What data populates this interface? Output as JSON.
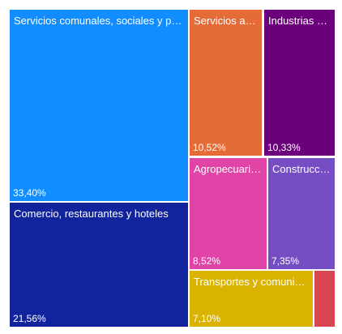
{
  "chart_data": {
    "type": "treemap",
    "items": [
      {
        "label": "Servicios comunales, sociales y pe…",
        "value_label": "33,40%",
        "value": 33.4,
        "color": "#118DFF"
      },
      {
        "label": "Comercio, restaurantes y hoteles",
        "value_label": "21,56%",
        "value": 21.56,
        "color": "#12239E"
      },
      {
        "label": "Servicios a …",
        "value_label": "10,52%",
        "value": 10.52,
        "color": "#E66C37"
      },
      {
        "label": "Industrias …",
        "value_label": "10,33%",
        "value": 10.33,
        "color": "#6B007B"
      },
      {
        "label": "Agropecuari…",
        "value_label": "8,52%",
        "value": 8.52,
        "color": "#E044A7"
      },
      {
        "label": "Construcci…",
        "value_label": "7,35%",
        "value": 7.35,
        "color": "#744EC2"
      },
      {
        "label": "Transportes y comunic…",
        "value_label": "7,10%",
        "value": 7.1,
        "color": "#D9B300"
      },
      {
        "label": "",
        "value_label": "",
        "value": 1.22,
        "color": "#D64550"
      }
    ]
  }
}
